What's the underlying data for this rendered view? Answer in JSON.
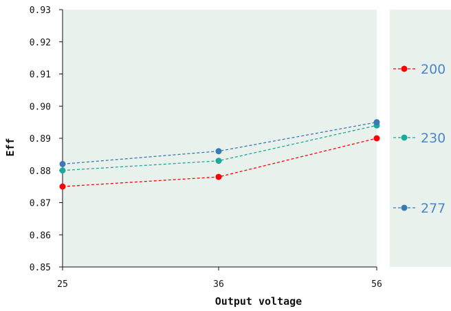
{
  "chart_data": {
    "type": "line",
    "x": [
      25,
      36,
      56
    ],
    "x_tick_labels": [
      "25",
      "36",
      "56"
    ],
    "y_tick_labels": [
      "0.85",
      "0.86",
      "0.87",
      "0.88",
      "0.89",
      "0.90",
      "0.91",
      "0.92",
      "0.93"
    ],
    "ylim": [
      0.85,
      0.93
    ],
    "xlabel": "Output voltage",
    "ylabel": "Eff",
    "title": "",
    "grid": false,
    "legend_position": "right",
    "background_color": "#e9f1ec",
    "series": [
      {
        "name": "200",
        "color": "#ff0000",
        "values": [
          0.875,
          0.878,
          0.89
        ]
      },
      {
        "name": "230",
        "color": "#1aa99a",
        "values": [
          0.88,
          0.883,
          0.894
        ]
      },
      {
        "name": "277",
        "color": "#3a78b6",
        "values": [
          0.882,
          0.886,
          0.895
        ]
      }
    ],
    "legend_text_color": "#4a86c6"
  }
}
